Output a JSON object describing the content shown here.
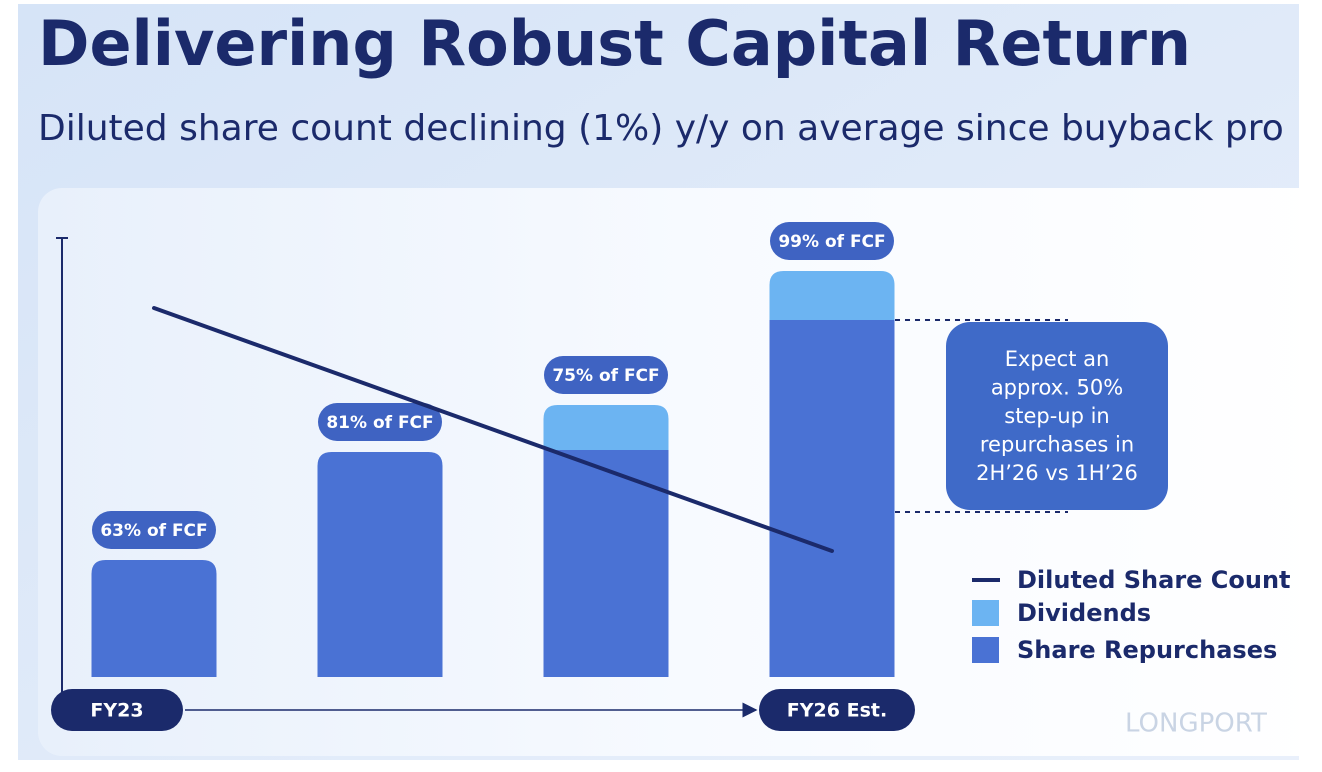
{
  "chart_data": {
    "type": "bar",
    "title": "Delivering Robust Capital Return",
    "subtitle": "Diluted share count declining (1%) y/y on average since buyback pro",
    "categories": [
      "FY23",
      null,
      null,
      "FY26 Est."
    ],
    "bar_labels": [
      "63% of FCF",
      "81% of FCF",
      "75% of FCF",
      "99% of FCF"
    ],
    "series": [
      {
        "name": "Diluted Share Count",
        "type": "line",
        "color": "#1b2a6b",
        "values": [
          369,
          288,
          207,
          126
        ]
      },
      {
        "name": "Dividends",
        "type": "bar",
        "color": "#6cb4f2",
        "values": [
          null,
          null,
          45,
          49
        ]
      },
      {
        "name": "Share Repurchases",
        "type": "bar",
        "color": "#4a72d4",
        "values": [
          117,
          225,
          227,
          357
        ]
      }
    ],
    "ylim": [
      0,
      440
    ],
    "callout": [
      "Expect an",
      "approx. 50%",
      "step-up in",
      "repurchases in",
      "2H’26 vs 1H’26"
    ],
    "watermark": "LONGPORT"
  }
}
